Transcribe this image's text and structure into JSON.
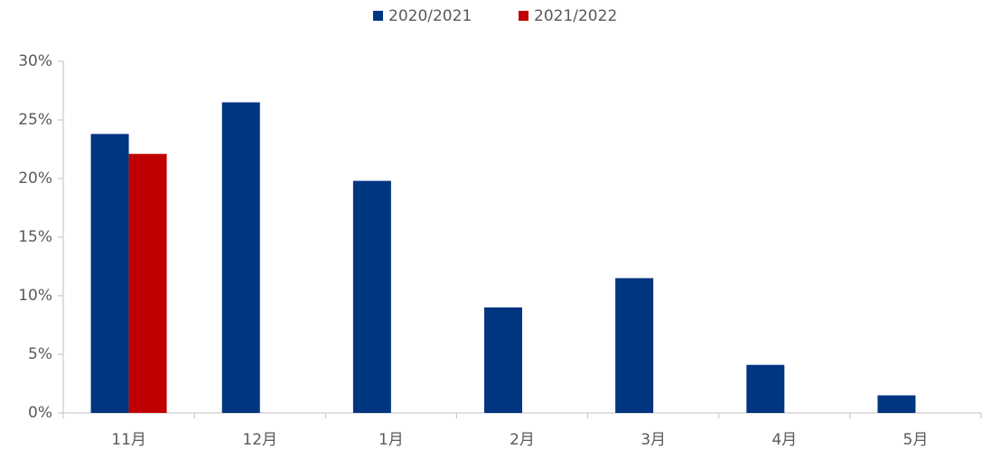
{
  "chart_data": {
    "type": "bar",
    "categories": [
      "11月",
      "12月",
      "1月",
      "2月",
      "3月",
      "4月",
      "5月"
    ],
    "series": [
      {
        "name": "2020/2021",
        "color": "#003580",
        "values": [
          23.8,
          26.5,
          19.8,
          9.0,
          11.5,
          4.1,
          1.5
        ]
      },
      {
        "name": "2021/2022",
        "color": "#c00000",
        "values": [
          22.1,
          null,
          null,
          null,
          null,
          null,
          null
        ]
      }
    ],
    "ylim": [
      0,
      30
    ],
    "yticks": [
      {
        "value": 0,
        "label": "0%"
      },
      {
        "value": 5,
        "label": "5%"
      },
      {
        "value": 10,
        "label": "10%"
      },
      {
        "value": 15,
        "label": "15%"
      },
      {
        "value": 20,
        "label": "20%"
      },
      {
        "value": 25,
        "label": "25%"
      },
      {
        "value": 30,
        "label": "30%"
      }
    ],
    "legend": "top"
  }
}
